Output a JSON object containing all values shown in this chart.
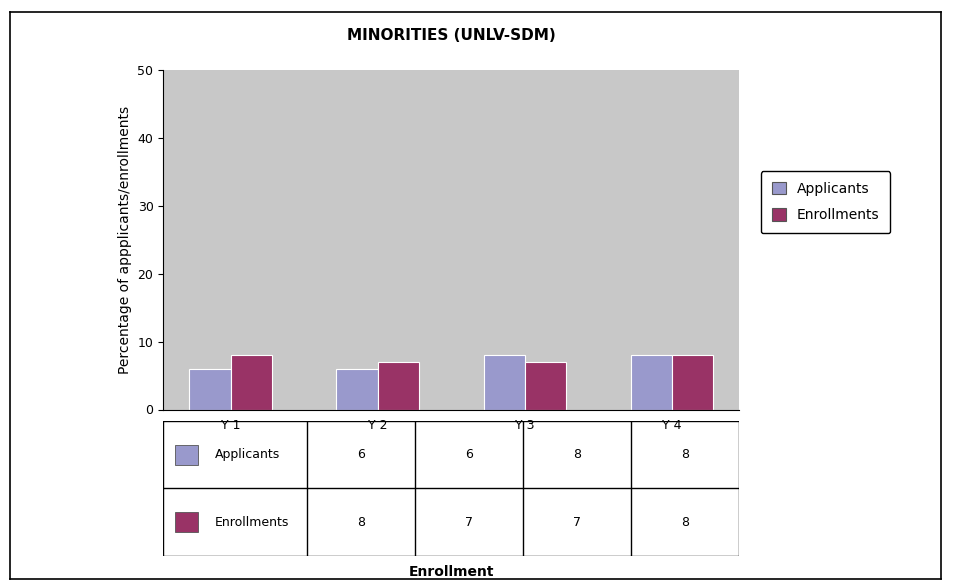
{
  "title": "MINORITIES (UNLV-SDM)",
  "categories": [
    "Y 1",
    "Y 2",
    "Y 3",
    "Y 4"
  ],
  "applicants": [
    6,
    6,
    8,
    8
  ],
  "enrollments": [
    8,
    7,
    7,
    8
  ],
  "applicants_color": "#9999cc",
  "enrollments_color": "#993366",
  "ylabel": "Percentage of appplicants/enrollments",
  "xlabel": "Enrollment",
  "ylim": [
    0,
    50
  ],
  "yticks": [
    0,
    10,
    20,
    30,
    40,
    50
  ],
  "plot_bg_color": "#c8c8c8",
  "legend_labels": [
    "Applicants",
    "Enrollments"
  ],
  "table_row1_label": "Applicants",
  "table_row2_label": "Enrollments",
  "title_fontsize": 11,
  "label_fontsize": 10,
  "tick_fontsize": 9
}
